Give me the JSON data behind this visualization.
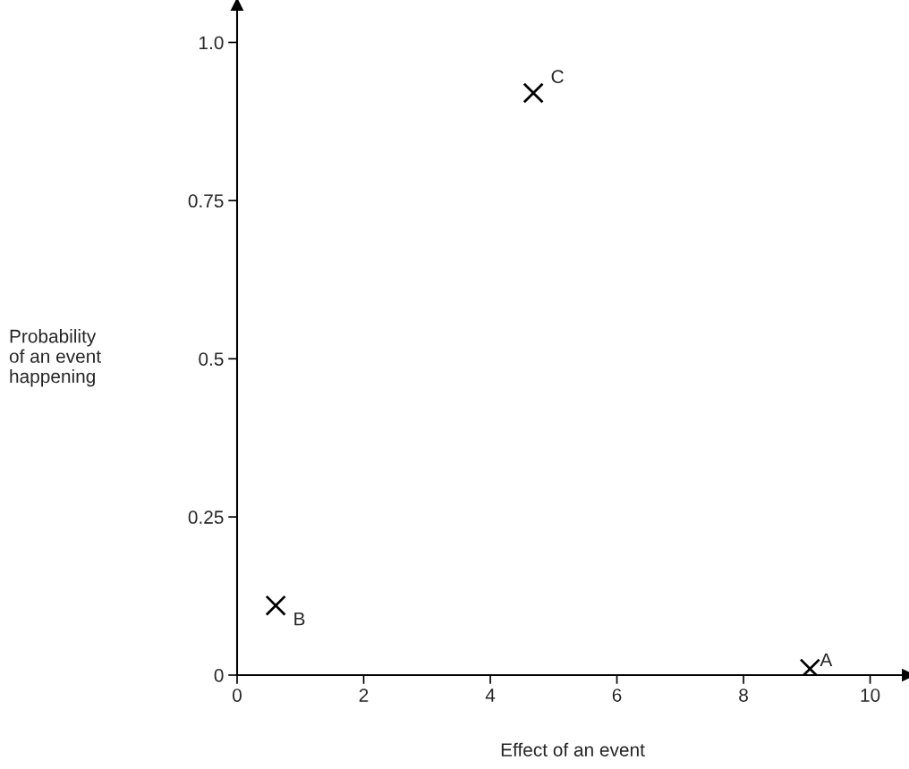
{
  "chart_data": {
    "type": "scatter",
    "xlabel": "Effect of an event",
    "ylabel": "Probability\nof an event\nhappening",
    "x": [
      9.05,
      0.61,
      4.68
    ],
    "values": [
      0.01,
      0.11,
      0.92
    ],
    "color": "#000000",
    "marker": "cross",
    "xlim": [
      0,
      10.6
    ],
    "ylim": [
      0,
      1.06
    ],
    "xticks": [
      0,
      2,
      4,
      6,
      8,
      10
    ],
    "yticks": [
      0,
      0.25,
      0.5,
      0.75,
      {
        "value": 1.0,
        "label": "1.0"
      }
    ],
    "grid": false,
    "annotations": [
      {
        "text": "A",
        "x": 9.05,
        "y": 0.01
      },
      {
        "text": "B",
        "x": 0.61,
        "y": 0.11
      },
      {
        "text": "C",
        "x": 4.68,
        "y": 0.92
      }
    ]
  }
}
